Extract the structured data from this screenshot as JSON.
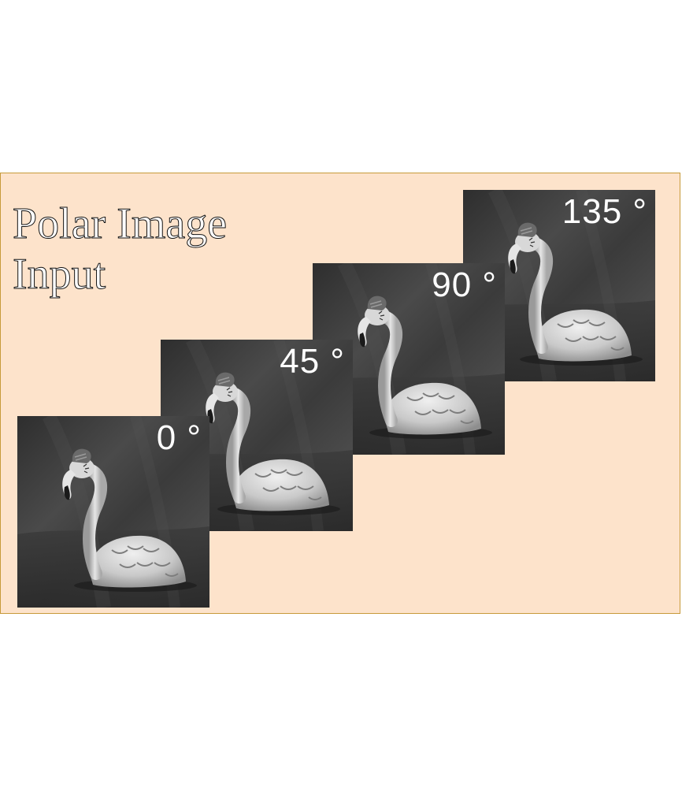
{
  "title_lines": [
    "Polar Image",
    "Input"
  ],
  "frames": [
    {
      "angle_label": "0 °"
    },
    {
      "angle_label": "45 °"
    },
    {
      "angle_label": "90 °"
    },
    {
      "angle_label": "135 °"
    }
  ],
  "colors": {
    "panel_background": "#fde3cb",
    "panel_border": "#c79a3a",
    "photo_background": "#3a3a3a",
    "label_text": "#ffffff"
  }
}
